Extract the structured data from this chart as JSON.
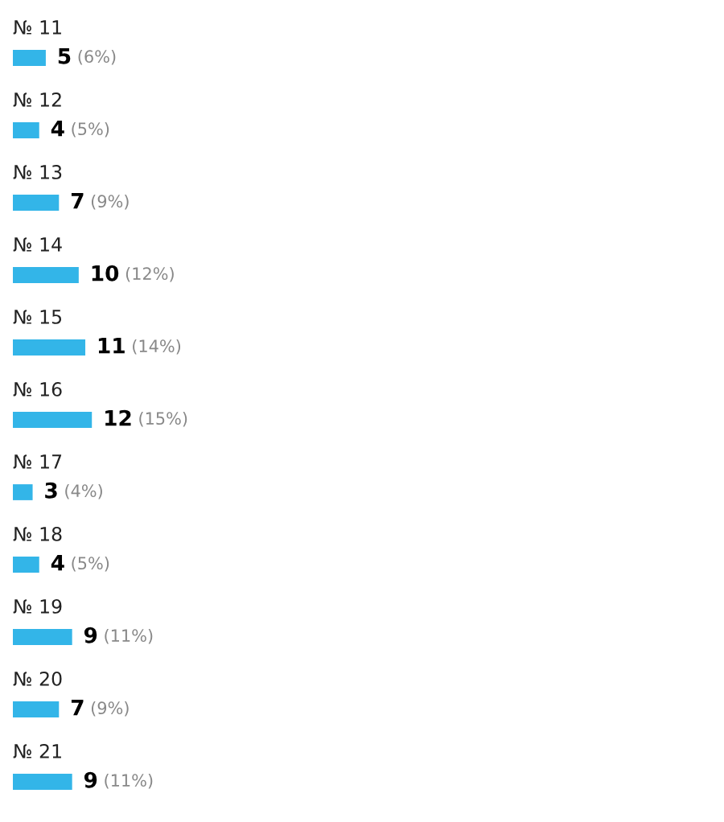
{
  "chart_data": {
    "type": "bar",
    "orientation": "horizontal",
    "categories": [
      "№ 11",
      "№ 12",
      "№ 13",
      "№ 14",
      "№ 15",
      "№ 16",
      "№ 17",
      "№ 18",
      "№ 19",
      "№ 20",
      "№ 21"
    ],
    "values": [
      5,
      4,
      7,
      10,
      11,
      12,
      3,
      4,
      9,
      7,
      9
    ],
    "value_labels": [
      "5 (6%)",
      "4 (5%)",
      "7 (9%)",
      "10 (12%)",
      "11 (14%)",
      "12 (15%)",
      "3 (4%)",
      "4 (5%)",
      "9 (11%)",
      "7 (9%)",
      "9 (11%)"
    ],
    "color": "#33b5e8"
  }
}
